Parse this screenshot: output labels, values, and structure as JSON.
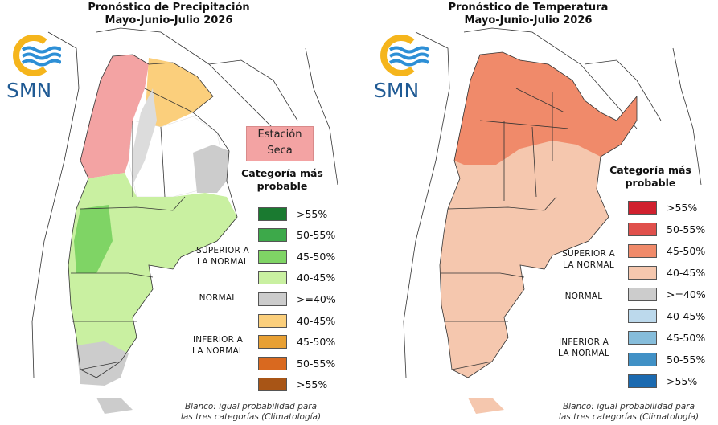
{
  "precip": {
    "title_line1": "Pronóstico de Precipitación",
    "title_line2": "Mayo-Junio-Julio 2026",
    "logo_text": "SMN",
    "dry_station_line1": "Estación",
    "dry_station_line2": "Seca",
    "legend_title_line1": "Categoría más",
    "legend_title_line2": "probable",
    "legend": [
      {
        "label": ">55%",
        "color": "#1a7a30"
      },
      {
        "label": "50-55%",
        "color": "#3da94a"
      },
      {
        "label": "45-50%",
        "color": "#7fd465"
      },
      {
        "label": "40-45%",
        "color": "#c9f0a1"
      },
      {
        "label": ">=40%",
        "color": "#cccccc"
      },
      {
        "label": "40-45%",
        "color": "#fbcf7c"
      },
      {
        "label": "45-50%",
        "color": "#e8a033"
      },
      {
        "label": "50-55%",
        "color": "#d9691f"
      },
      {
        "label": ">55%",
        "color": "#a85516"
      }
    ],
    "upper_label_line1": "SUPERIOR A",
    "upper_label_line2": "LA NORMAL",
    "normal_label": "NORMAL",
    "lower_label_line1": "INFERIOR A",
    "lower_label_line2": "LA NORMAL",
    "footnote_line1": "Blanco: igual probabilidad para",
    "footnote_line2": "las tres categorías (Climatología)"
  },
  "temp": {
    "title_line1": "Pronóstico de Temperatura",
    "title_line2": "Mayo-Junio-Julio 2026",
    "logo_text": "SMN",
    "legend_title_line1": "Categoría más",
    "legend_title_line2": "probable",
    "legend": [
      {
        "label": ">55%",
        "color": "#d0202e"
      },
      {
        "label": "50-55%",
        "color": "#e0504c"
      },
      {
        "label": "45-50%",
        "color": "#f08a6a"
      },
      {
        "label": "40-45%",
        "color": "#f5c7ae"
      },
      {
        "label": ">=40%",
        "color": "#cccccc"
      },
      {
        "label": "40-45%",
        "color": "#bcd9ec"
      },
      {
        "label": "45-50%",
        "color": "#86bddb"
      },
      {
        "label": "50-55%",
        "color": "#4191c6"
      },
      {
        "label": ">55%",
        "color": "#1b6ab0"
      }
    ],
    "upper_label_line1": "SUPERIOR A",
    "upper_label_line2": "LA NORMAL",
    "normal_label": "NORMAL",
    "lower_label_line1": "INFERIOR A",
    "lower_label_line2": "LA NORMAL",
    "footnote_line1": "Blanco: igual probabilidad para",
    "footnote_line2": "las tres categorías (Climatología)"
  },
  "colors": {
    "logo_ring": "#f5b51c",
    "logo_waves": "#2d8fd6",
    "logo_text": "#1f5a94"
  }
}
